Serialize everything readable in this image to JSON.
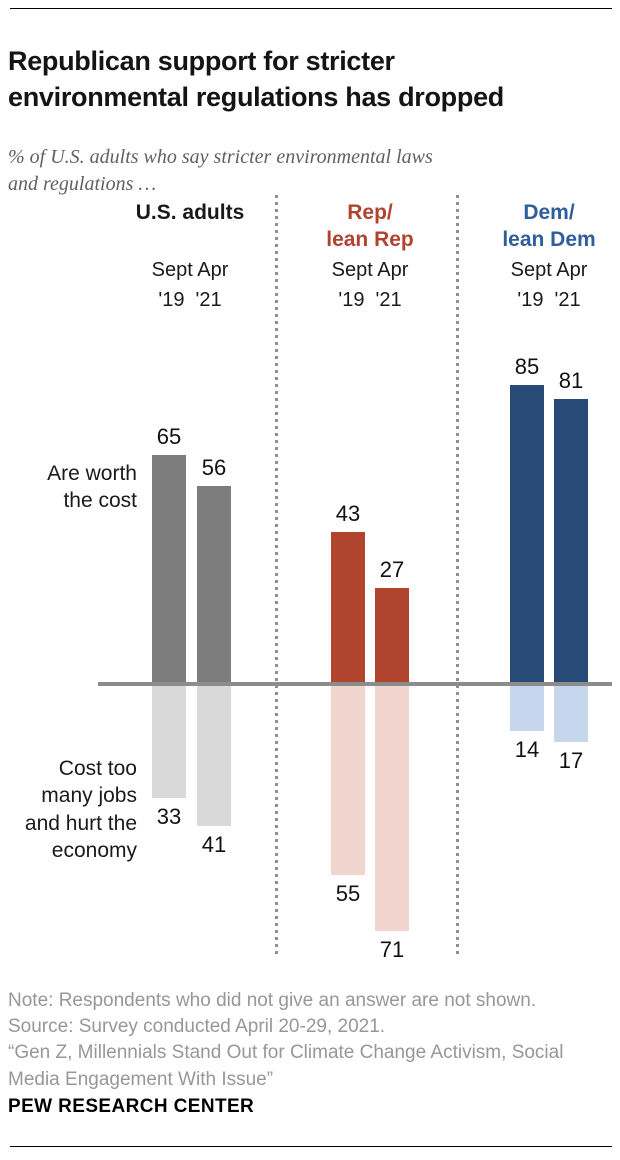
{
  "header": {
    "title": "Republican support for stricter\nenvironmental regulations has dropped",
    "subtitle": "% of U.S. adults who say stricter environmental laws\nand regulations …"
  },
  "chart_data": {
    "type": "bar",
    "subtype": "diverging-grouped",
    "unit": "%",
    "categories": [
      "Sept '19",
      "Apr '21"
    ],
    "period_label": "Sept Apr\n'19  '21",
    "positive_label": "Are worth\nthe cost",
    "negative_label": "Cost too\nmany jobs\nand hurt the\neconomy",
    "ylim": [
      -75,
      90
    ],
    "axis_line_color": "#8c8c8c",
    "grid": false,
    "groups": [
      {
        "name": "U.S. adults",
        "header_color": "#1a1a1a",
        "bar_color": "#7d7d7d",
        "bar_color_light": "#d9d9d9",
        "worth_the_cost": [
          65,
          56
        ],
        "cost_too_many_jobs": [
          33,
          41
        ]
      },
      {
        "name": "Rep/\nlean Rep",
        "header_color": "#b0442f",
        "bar_color": "#b0442f",
        "bar_color_light": "#f0d5cf",
        "worth_the_cost": [
          43,
          27
        ],
        "cost_too_many_jobs": [
          55,
          71
        ]
      },
      {
        "name": "Dem/\nlean Dem",
        "header_color": "#2f5e9e",
        "bar_color": "#274a77",
        "bar_color_light": "#c6d7ed",
        "worth_the_cost": [
          85,
          81
        ],
        "cost_too_many_jobs": [
          14,
          17
        ]
      }
    ]
  },
  "footer": {
    "notes": "Note: Respondents who did not give an answer are not shown.\nSource: Survey conducted April 20-29, 2021.\n“Gen Z, Millennials Stand Out for Climate Change Activism, Social\nMedia Engagement With Issue”",
    "brand": "PEW RESEARCH CENTER"
  }
}
